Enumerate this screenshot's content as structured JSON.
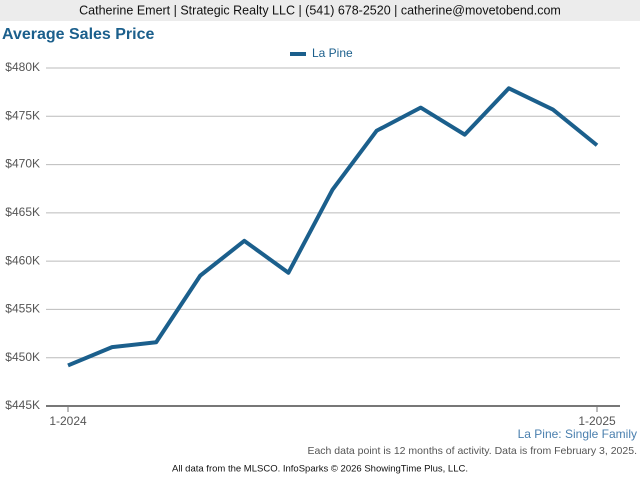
{
  "header": "Catherine Emert | Strategic Realty LLC | (541) 678-2520 | catherine@movetobend.com",
  "chart_data": {
    "type": "line",
    "title": "Average Sales Price",
    "categories": [
      "1-2024",
      null,
      null,
      null,
      null,
      null,
      null,
      null,
      null,
      null,
      null,
      null,
      "1-2025"
    ],
    "series": [
      {
        "name": "La Pine",
        "color": "#1b5f8c",
        "values": [
          449200,
          451100,
          451600,
          458500,
          462100,
          458800,
          467400,
          473500,
          475900,
          473100,
          477900,
          475700,
          472000
        ]
      }
    ],
    "ylim": [
      445000,
      480000
    ],
    "yticks": [
      {
        "value": 445000,
        "label": "$445K"
      },
      {
        "value": 450000,
        "label": "$450K"
      },
      {
        "value": 455000,
        "label": "$455K"
      },
      {
        "value": 460000,
        "label": "$460K"
      },
      {
        "value": 465000,
        "label": "$465K"
      },
      {
        "value": 470000,
        "label": "$470K"
      },
      {
        "value": 475000,
        "label": "$475K"
      },
      {
        "value": 480000,
        "label": "$480K"
      }
    ],
    "grid": true,
    "caption": "La Pine: Single Family",
    "note": "Each data point is 12 months of activity. Data is from February 3, 2025."
  },
  "footer": "All data from the MLSCO. InfoSparks © 2026 ShowingTime Plus, LLC."
}
